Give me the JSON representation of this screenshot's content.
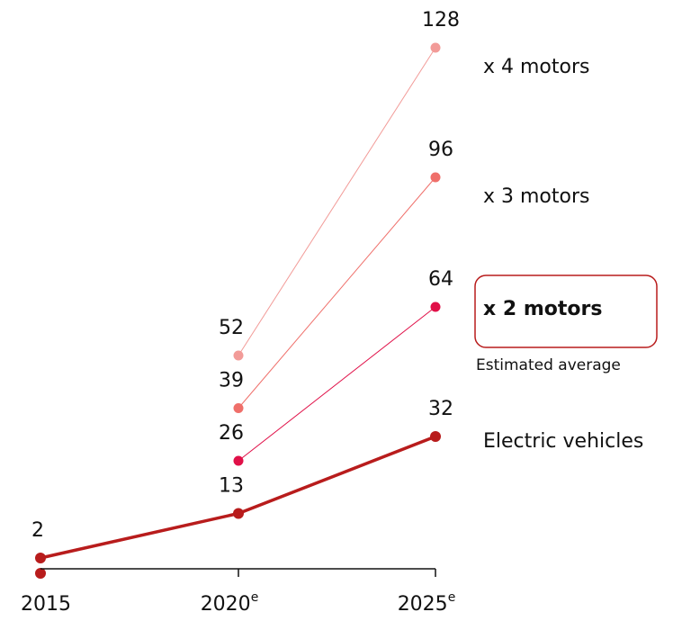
{
  "chart_data": {
    "type": "line",
    "categories": [
      "2015",
      "2020",
      "2025"
    ],
    "category_notes": [
      null,
      "e",
      "e"
    ],
    "ylim": [
      0,
      128
    ],
    "series": [
      {
        "name": "Electric vehicles",
        "color": "#b81c1c",
        "values": [
          2,
          13,
          32
        ]
      },
      {
        "name": "x 2 motors",
        "color": "#e01048",
        "values": [
          null,
          26,
          64
        ],
        "highlight": true
      },
      {
        "name": "x 3 motors",
        "color": "#ef6f6a",
        "values": [
          null,
          39,
          96
        ]
      },
      {
        "name": "x 4 motors",
        "color": "#f29b98",
        "values": [
          null,
          52,
          128
        ]
      }
    ],
    "annotation": "Estimated average"
  }
}
